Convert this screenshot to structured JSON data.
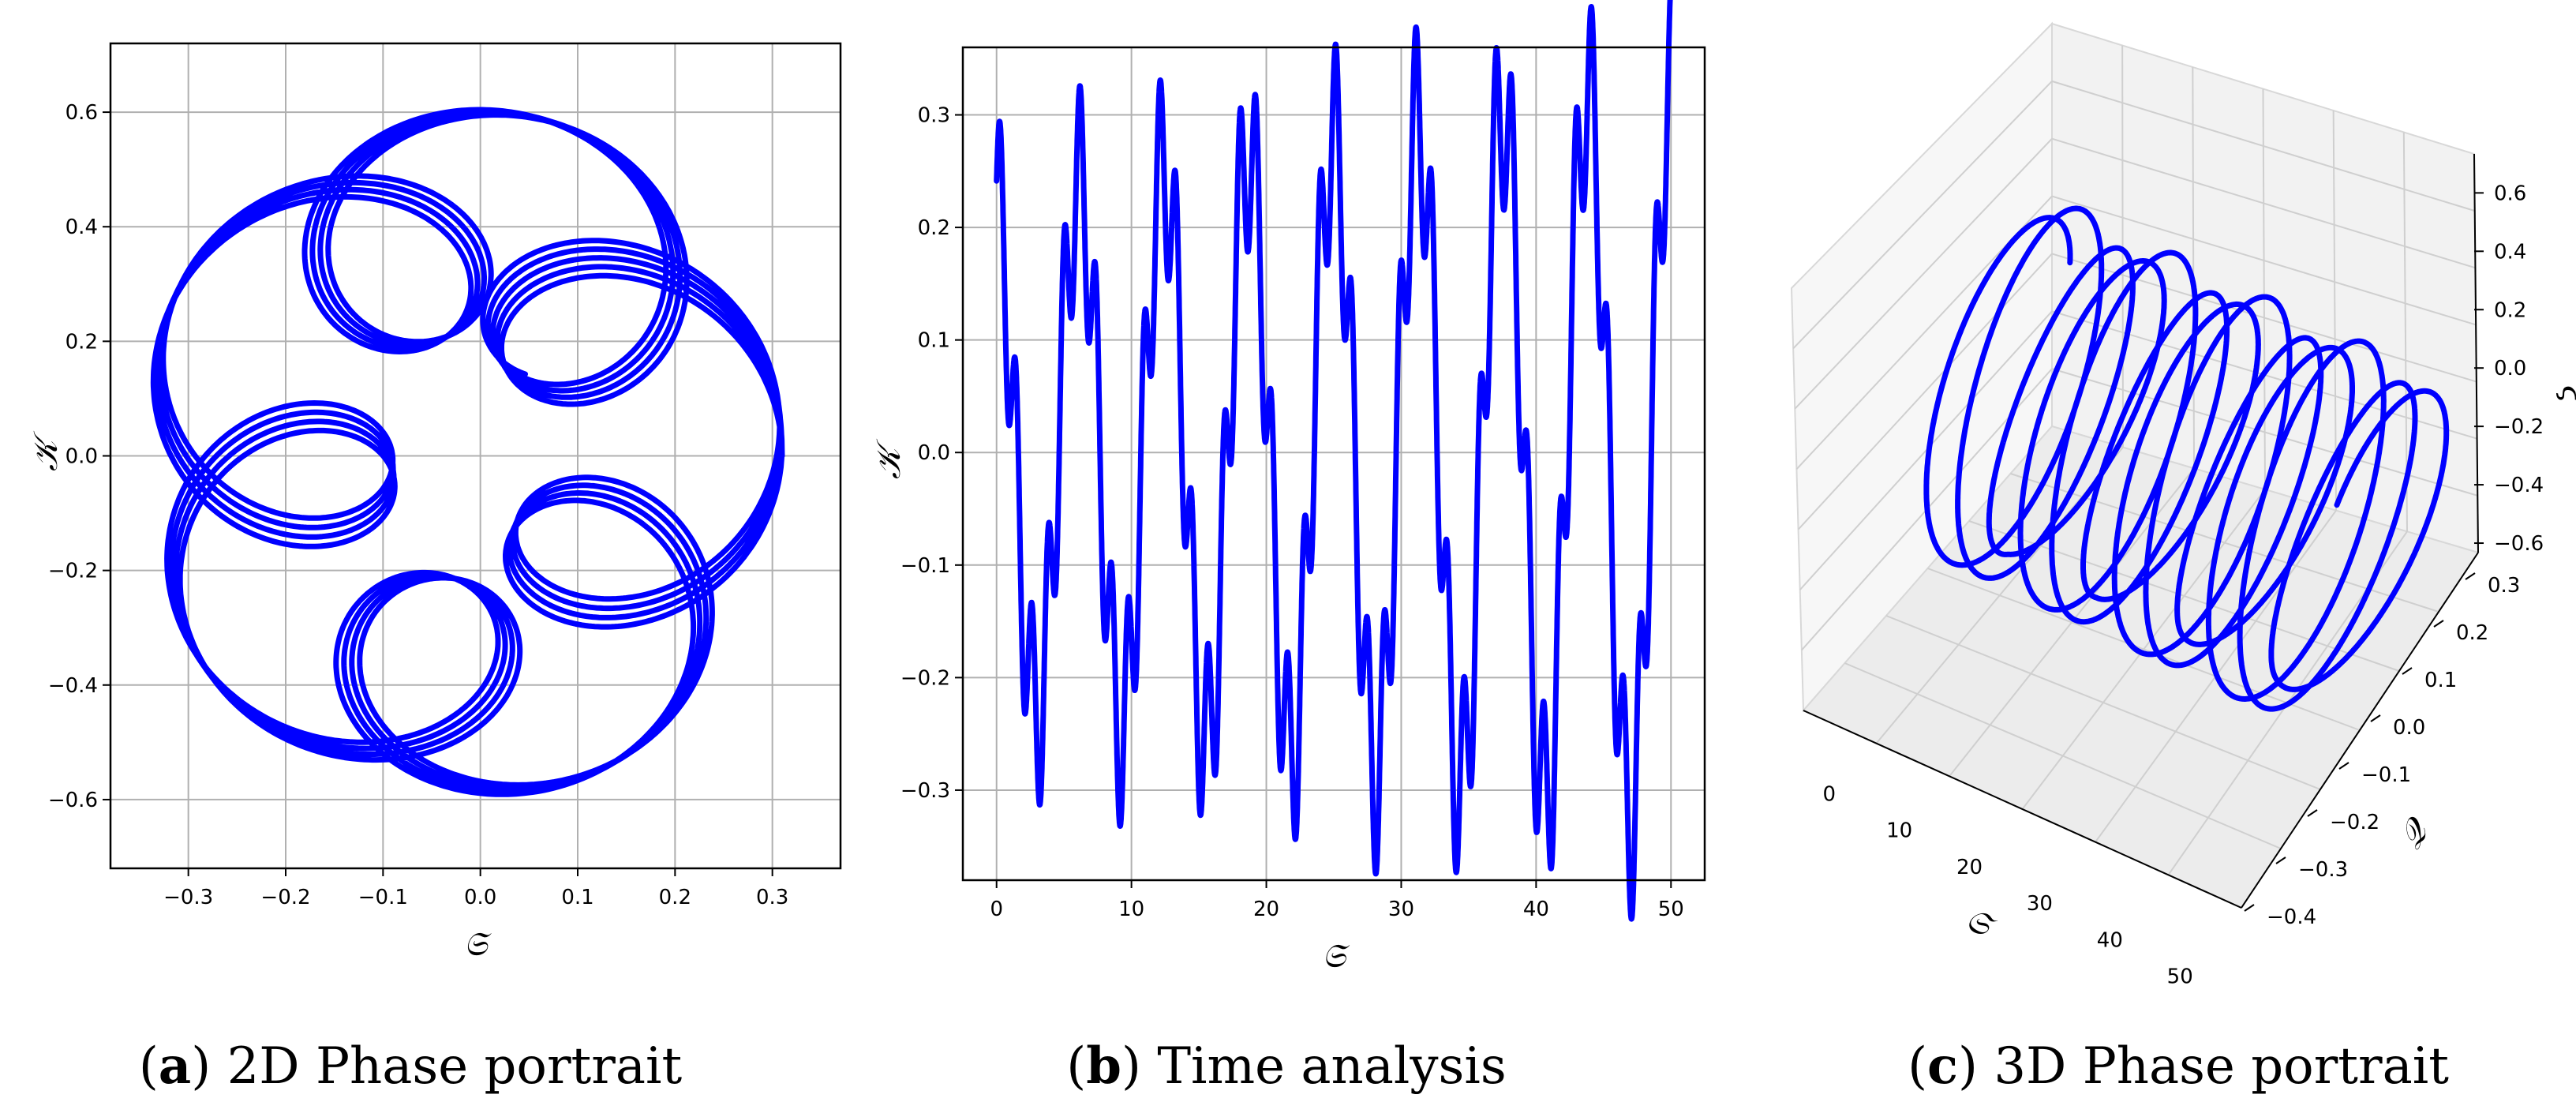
{
  "chart_data": [
    {
      "type": "line",
      "id": "a",
      "caption_letter": "a",
      "caption_text": "2D Phase portrait",
      "xlabel": "𝔖",
      "ylabel": "𝒦",
      "xlim": [
        -0.38,
        0.37
      ],
      "ylim": [
        -0.72,
        0.72
      ],
      "xticks": [
        -0.3,
        -0.2,
        -0.1,
        0.0,
        0.1,
        0.2,
        0.3
      ],
      "yticks": [
        -0.6,
        -0.4,
        -0.2,
        0.0,
        0.2,
        0.4,
        0.6
      ],
      "grid": true,
      "series": [
        {
          "color": "#0000ff",
          "t_range": [
            0,
            50
          ]
        }
      ]
    },
    {
      "type": "line",
      "id": "b",
      "caption_letter": "b",
      "caption_text": "Time analysis",
      "xlabel": "𝔖",
      "ylabel": "𝒦",
      "xlim": [
        -2.5,
        52.5
      ],
      "ylim": [
        -0.38,
        0.36
      ],
      "xticks": [
        0,
        10,
        20,
        30,
        40,
        50
      ],
      "yticks": [
        -0.3,
        -0.2,
        -0.1,
        0.0,
        0.1,
        0.2,
        0.3
      ],
      "grid": true,
      "series": [
        {
          "color": "#0000ff",
          "t_range": [
            0,
            50
          ]
        }
      ]
    },
    {
      "type": "line",
      "id": "c",
      "caption_letter": "c",
      "caption_text": "3D Phase portrait",
      "xlabel": "𝔖",
      "ylabel": "𝒬",
      "zlabel": "ξ",
      "xticks": [
        0,
        10,
        20,
        30,
        40,
        50
      ],
      "yticks": [
        -0.4,
        -0.3,
        -0.2,
        -0.1,
        0.0,
        0.1,
        0.2,
        0.3
      ],
      "zticks": [
        -0.6,
        -0.4,
        -0.2,
        0.0,
        0.2,
        0.4,
        0.6
      ],
      "grid": true,
      "series": [
        {
          "color": "#0000ff",
          "t_range": [
            0,
            50
          ]
        }
      ]
    }
  ]
}
